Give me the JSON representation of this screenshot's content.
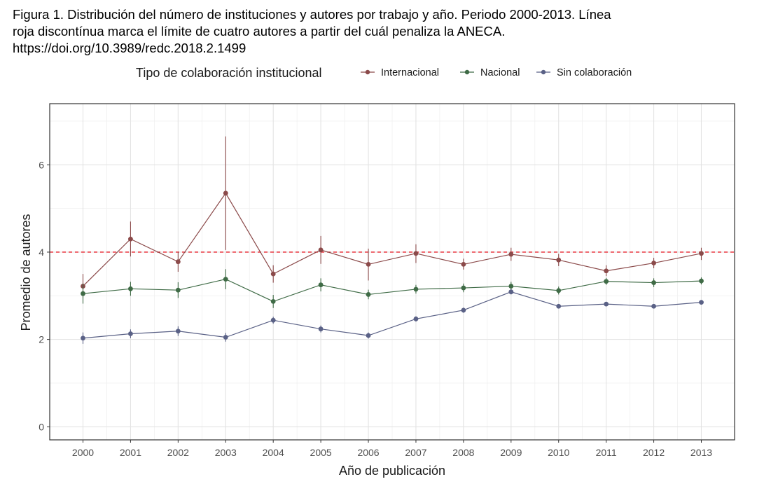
{
  "caption": {
    "line1": "Figura 1. Distribución del número de instituciones y autores por trabajo y año. Periodo 2000-2013. Línea",
    "line2": "roja discontínua marca el límite de cuatro autores a partir del cuál penaliza la ANECA.",
    "line3": "https://doi.org/10.3989/redc.2018.2.1499"
  },
  "chart_data": {
    "type": "line",
    "title": "",
    "xlabel": "Año de publicación",
    "ylabel": "Promedio de autores",
    "legend_title": "Tipo de colaboración institucional",
    "legend_position": "top",
    "grid": true,
    "x": [
      2000,
      2001,
      2002,
      2003,
      2004,
      2005,
      2006,
      2007,
      2008,
      2009,
      2010,
      2011,
      2012,
      2013
    ],
    "xticks": [
      "2000",
      "2001",
      "2002",
      "2003",
      "2004",
      "2005",
      "2006",
      "2007",
      "2008",
      "2009",
      "2010",
      "2011",
      "2012",
      "2013"
    ],
    "ylim": [
      -0.3,
      7.4
    ],
    "yticks": [
      0,
      2,
      4,
      6
    ],
    "ytick_labels": [
      "0",
      "2",
      "4",
      "6"
    ],
    "reference_line": {
      "y": 4,
      "style": "dashed",
      "color": "#e8212b"
    },
    "series": [
      {
        "name": "Internacional",
        "color": "#8b4a4a",
        "values": [
          3.22,
          4.3,
          3.78,
          5.35,
          3.5,
          4.05,
          3.72,
          3.97,
          3.72,
          3.95,
          3.82,
          3.57,
          3.75,
          3.97
        ],
        "lower": [
          2.95,
          3.9,
          3.55,
          4.05,
          3.3,
          3.73,
          3.35,
          3.75,
          3.6,
          3.8,
          3.68,
          3.45,
          3.63,
          3.82
        ],
        "upper": [
          3.5,
          4.7,
          4.0,
          6.65,
          3.7,
          4.37,
          4.08,
          4.18,
          3.85,
          4.1,
          3.96,
          3.7,
          3.87,
          4.1
        ]
      },
      {
        "name": "Nacional",
        "color": "#3f6b46",
        "values": [
          3.05,
          3.16,
          3.13,
          3.38,
          2.87,
          3.25,
          3.03,
          3.15,
          3.18,
          3.22,
          3.12,
          3.33,
          3.3,
          3.34
        ],
        "lower": [
          2.82,
          3.0,
          2.95,
          3.15,
          2.72,
          3.1,
          2.92,
          3.05,
          3.08,
          3.12,
          3.03,
          3.25,
          3.2,
          3.26
        ],
        "upper": [
          3.28,
          3.32,
          3.31,
          3.61,
          3.02,
          3.4,
          3.14,
          3.25,
          3.28,
          3.32,
          3.21,
          3.41,
          3.4,
          3.42
        ]
      },
      {
        "name": "Sin colaboración",
        "color": "#5a6186",
        "values": [
          2.03,
          2.13,
          2.19,
          2.05,
          2.44,
          2.24,
          2.09,
          2.47,
          2.67,
          3.09,
          2.76,
          2.81,
          2.76,
          2.85
        ],
        "lower": [
          1.9,
          2.03,
          2.08,
          1.95,
          2.36,
          2.16,
          2.02,
          2.41,
          2.61,
          3.03,
          2.71,
          2.76,
          2.71,
          2.8
        ],
        "upper": [
          2.16,
          2.23,
          2.3,
          2.15,
          2.52,
          2.32,
          2.16,
          2.53,
          2.73,
          3.15,
          2.81,
          2.86,
          2.81,
          2.9
        ]
      }
    ]
  }
}
